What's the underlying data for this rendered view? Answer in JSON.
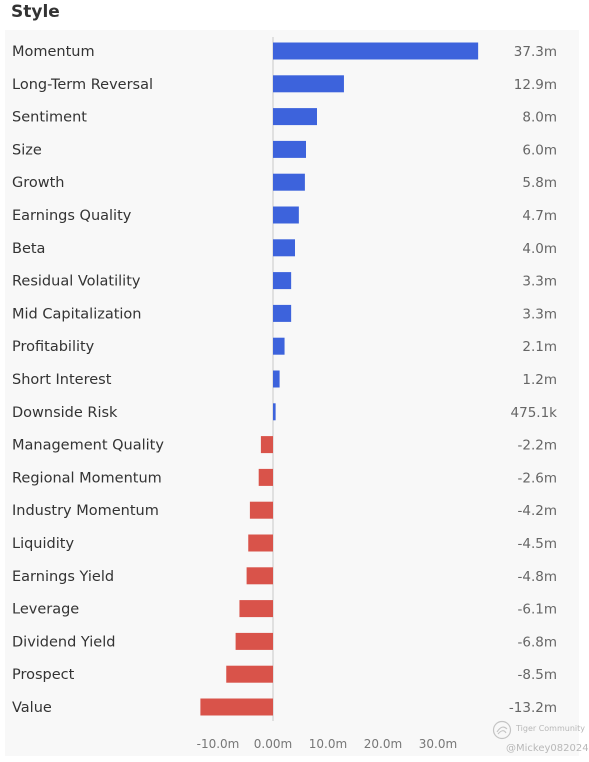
{
  "title": "Style",
  "colors": {
    "positive": "#3d63dc",
    "negative": "#d9534a",
    "zero_line": "#c8c8c8"
  },
  "chart_data": {
    "type": "bar",
    "orientation": "horizontal",
    "xlim": [
      -14,
      38
    ],
    "ticks": [
      {
        "value": -10,
        "label": "-10.0m"
      },
      {
        "value": 0,
        "label": "0.00m"
      },
      {
        "value": 10,
        "label": "10.0m"
      },
      {
        "value": 20,
        "label": "20.0m"
      },
      {
        "value": 30,
        "label": "30.0m"
      }
    ],
    "categories": [
      "Momentum",
      "Long-Term Reversal",
      "Sentiment",
      "Size",
      "Growth",
      "Earnings Quality",
      "Beta",
      "Residual Volatility",
      "Mid Capitalization",
      "Profitability",
      "Short Interest",
      "Downside Risk",
      "Management Quality",
      "Regional Momentum",
      "Industry Momentum",
      "Liquidity",
      "Earnings Yield",
      "Leverage",
      "Dividend Yield",
      "Prospect",
      "Value"
    ],
    "values": [
      37.3,
      12.9,
      8.0,
      6.0,
      5.8,
      4.7,
      4.0,
      3.3,
      3.3,
      2.1,
      1.2,
      0.4751,
      -2.2,
      -2.6,
      -4.2,
      -4.5,
      -4.8,
      -6.1,
      -6.8,
      -8.5,
      -13.2
    ],
    "value_labels": [
      "37.3m",
      "12.9m",
      "8.0m",
      "6.0m",
      "5.8m",
      "4.7m",
      "4.0m",
      "3.3m",
      "3.3m",
      "2.1m",
      "1.2m",
      "475.1k",
      "-2.2m",
      "-2.6m",
      "-4.2m",
      "-4.5m",
      "-4.8m",
      "-6.1m",
      "-6.8m",
      "-8.5m",
      "-13.2m"
    ]
  },
  "watermark": {
    "brand": "Tiger Community",
    "user": "@Mickey082024"
  }
}
